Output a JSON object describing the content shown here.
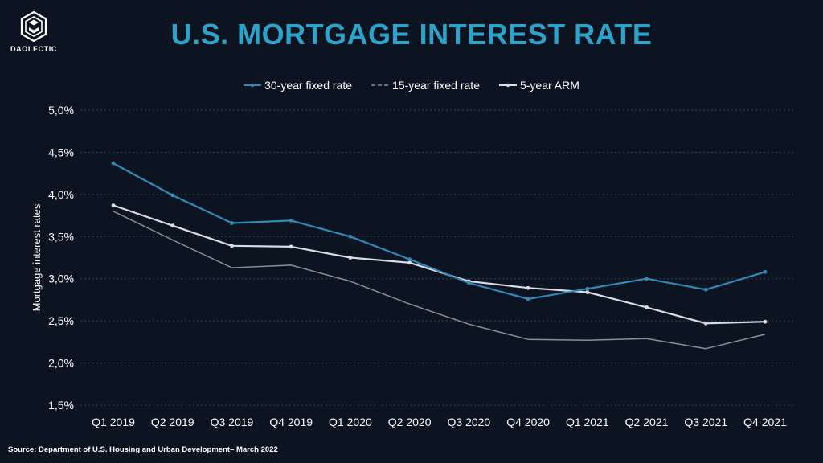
{
  "brand": {
    "name": "DAOLECTIC",
    "logo_icon": "hexagon-logo-icon"
  },
  "source_note": "Source: Department of U.S. Housing and Urban Development– March 2022",
  "colors": {
    "background": "#0d1421",
    "title": "#2ea3c9",
    "series_30yr": "#3389b8",
    "series_15yr": "#8a8f99",
    "series_arm": "#d9dce3",
    "grid": "#3a4252"
  },
  "chart_data": {
    "type": "line",
    "title": "U.S. MORTGAGE INTEREST RATE",
    "xlabel": "",
    "ylabel": "Mortgage interest rates",
    "ylim": [
      1.5,
      5.0
    ],
    "yticks": [
      "1,5%",
      "2,0%",
      "2,5%",
      "3,0%",
      "3,5%",
      "4,0%",
      "4,5%",
      "5,0%"
    ],
    "grid": "horizontal dotted",
    "legend_position": "top-center",
    "categories": [
      "Q1 2019",
      "Q2 2019",
      "Q3 2019",
      "Q4 2019",
      "Q1 2020",
      "Q2 2020",
      "Q3 2020",
      "Q4 2020",
      "Q1 2021",
      "Q2 2021",
      "Q3 2021",
      "Q4 2021"
    ],
    "series": [
      {
        "name": "30-year fixed rate",
        "style": "solid",
        "values": [
          4.37,
          3.99,
          3.66,
          3.69,
          3.5,
          3.23,
          2.95,
          2.76,
          2.88,
          3.0,
          2.87,
          3.08
        ]
      },
      {
        "name": "15-year fixed rate",
        "style": "dashed",
        "values": [
          3.8,
          3.46,
          3.13,
          3.16,
          2.97,
          2.7,
          2.46,
          2.28,
          2.27,
          2.29,
          2.17,
          2.34
        ]
      },
      {
        "name": "5-year ARM",
        "style": "solid",
        "values": [
          3.87,
          3.63,
          3.39,
          3.38,
          3.25,
          3.19,
          2.97,
          2.89,
          2.84,
          2.66,
          2.47,
          2.49
        ]
      }
    ]
  }
}
